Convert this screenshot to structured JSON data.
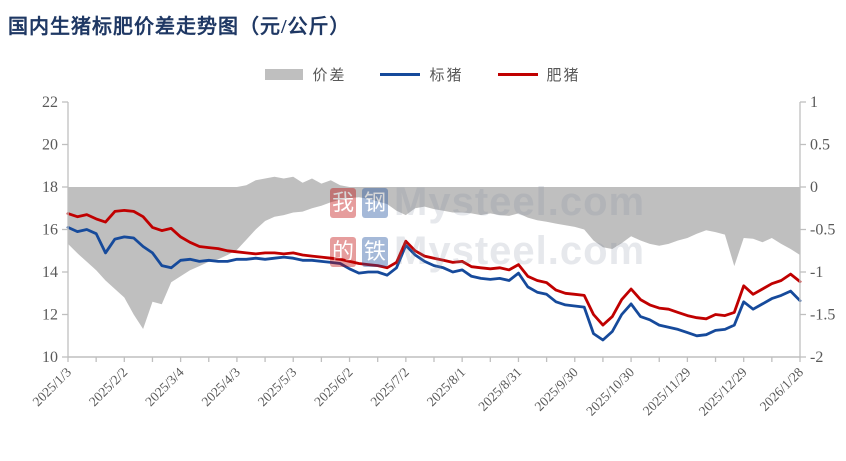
{
  "title": "国内生猪标肥价差走势图（元/公斤）",
  "colors": {
    "title": "#1F3864",
    "area": "#BFBFBF",
    "biao_line": "#164A9B",
    "fei_line": "#C00000",
    "axis_line": "#BFBFBF",
    "axis_text": "#595959",
    "watermark_red": "#C00000",
    "watermark_blue": "#164A9B"
  },
  "legend": {
    "items": [
      {
        "label": "价差",
        "type": "area",
        "color": "#BFBFBF"
      },
      {
        "label": "标猪",
        "type": "line",
        "color": "#164A9B"
      },
      {
        "label": "肥猪",
        "type": "line",
        "color": "#C00000"
      }
    ]
  },
  "watermark": {
    "text": "Mysteel.com",
    "tiles": [
      "我",
      "钢",
      "的",
      "铁"
    ]
  },
  "chart_data": {
    "type": "line+area",
    "title": "国内生猪标肥价差走势图（元/公斤）",
    "x_label_dates": [
      "2025/1/3",
      "2025/2/2",
      "2025/3/4",
      "2025/4/3",
      "2025/5/3",
      "2025/6/2",
      "2025/7/2",
      "2025/8/1",
      "2025/8/31",
      "2025/9/30",
      "2025/10/30",
      "2025/11/29",
      "2025/12/29",
      "2026/1/28"
    ],
    "x_label_every_days": 30,
    "x_minor_tick_days": 15,
    "x_total_days": 390,
    "sample_interval_days": 5,
    "left_axis": {
      "min": 10,
      "max": 22,
      "step": 2,
      "ticks": [
        "22",
        "20",
        "18",
        "16",
        "14",
        "12",
        "10"
      ]
    },
    "right_axis": {
      "min": -2,
      "max": 1,
      "step": 0.5,
      "ticks": [
        "1",
        "0.5",
        "0",
        "-0.5",
        "-1",
        "-1.5",
        "-2"
      ]
    },
    "grid": false,
    "legend_position": "top-center",
    "series": [
      {
        "name": "价差",
        "axis": "right",
        "render": "area-band",
        "color": "#BFBFBF",
        "upper": [
          0,
          0,
          0,
          0,
          0,
          0,
          0,
          0,
          0,
          0,
          0,
          0,
          0,
          0,
          0,
          0,
          0,
          0,
          0,
          0.02,
          0.08,
          0.1,
          0.12,
          0.1,
          0.12,
          0.05,
          0.1,
          0.04,
          0.08,
          0.02,
          0,
          0,
          0,
          0,
          0,
          0,
          0,
          0,
          0,
          0,
          0,
          0,
          0,
          0,
          0,
          0,
          0,
          0,
          0,
          0,
          0,
          0,
          0,
          0,
          0,
          0,
          0,
          0,
          0,
          0,
          0,
          0,
          0,
          0,
          0,
          0,
          0,
          0,
          0,
          0,
          0,
          0,
          0,
          0,
          0,
          0,
          0,
          0,
          0
        ],
        "lower": [
          -0.67,
          -0.78,
          -0.88,
          -0.98,
          -1.1,
          -1.2,
          -1.3,
          -1.5,
          -1.67,
          -1.35,
          -1.38,
          -1.12,
          -1.05,
          -0.98,
          -0.93,
          -0.88,
          -0.85,
          -0.8,
          -0.74,
          -0.62,
          -0.5,
          -0.4,
          -0.35,
          -0.33,
          -0.3,
          -0.29,
          -0.25,
          -0.22,
          -0.18,
          -0.15,
          -0.13,
          -0.12,
          -0.14,
          -0.17,
          -0.2,
          -0.28,
          -0.33,
          -0.25,
          -0.23,
          -0.26,
          -0.28,
          -0.3,
          -0.3,
          -0.31,
          -0.33,
          -0.31,
          -0.33,
          -0.34,
          -0.31,
          -0.36,
          -0.39,
          -0.41,
          -0.43,
          -0.45,
          -0.47,
          -0.5,
          -0.63,
          -0.71,
          -0.73,
          -0.66,
          -0.58,
          -0.63,
          -0.67,
          -0.69,
          -0.67,
          -0.63,
          -0.6,
          -0.55,
          -0.51,
          -0.53,
          -0.56,
          -0.93,
          -0.6,
          -0.61,
          -0.65,
          -0.6,
          -0.67,
          -0.73,
          -0.8
        ]
      },
      {
        "name": "标猪",
        "axis": "left",
        "render": "line",
        "color": "#164A9B",
        "values": [
          16.1,
          15.9,
          16.0,
          15.8,
          14.9,
          15.55,
          15.65,
          15.6,
          15.2,
          14.9,
          14.3,
          14.2,
          14.55,
          14.6,
          14.5,
          14.55,
          14.5,
          14.5,
          14.6,
          14.6,
          14.65,
          14.6,
          14.65,
          14.7,
          14.65,
          14.55,
          14.55,
          14.5,
          14.45,
          14.4,
          14.15,
          13.95,
          14.0,
          14.0,
          13.85,
          14.2,
          15.25,
          14.8,
          14.5,
          14.3,
          14.2,
          14.0,
          14.1,
          13.8,
          13.7,
          13.65,
          13.7,
          13.6,
          13.95,
          13.3,
          13.05,
          12.95,
          12.6,
          12.45,
          12.4,
          12.35,
          11.1,
          10.8,
          11.2,
          12.0,
          12.5,
          11.9,
          11.75,
          11.5,
          11.4,
          11.3,
          11.15,
          11.0,
          11.05,
          11.25,
          11.3,
          11.5,
          12.6,
          12.25,
          12.5,
          12.75,
          12.9,
          13.1,
          12.65
        ]
      },
      {
        "name": "肥猪",
        "axis": "left",
        "render": "line",
        "color": "#C00000",
        "values": [
          16.75,
          16.6,
          16.7,
          16.5,
          16.35,
          16.85,
          16.9,
          16.85,
          16.6,
          16.1,
          15.95,
          16.05,
          15.65,
          15.4,
          15.2,
          15.15,
          15.1,
          15.0,
          14.95,
          14.9,
          14.85,
          14.9,
          14.9,
          14.85,
          14.9,
          14.8,
          14.75,
          14.7,
          14.65,
          14.6,
          14.5,
          14.4,
          14.35,
          14.3,
          14.2,
          14.45,
          15.45,
          15.0,
          14.75,
          14.65,
          14.55,
          14.45,
          14.5,
          14.25,
          14.2,
          14.15,
          14.2,
          14.1,
          14.35,
          13.8,
          13.6,
          13.5,
          13.15,
          13.0,
          12.95,
          12.9,
          12.0,
          11.5,
          11.9,
          12.7,
          13.2,
          12.7,
          12.45,
          12.3,
          12.25,
          12.1,
          11.95,
          11.85,
          11.8,
          12.0,
          11.95,
          12.1,
          13.35,
          12.95,
          13.2,
          13.45,
          13.6,
          13.9,
          13.55
        ]
      }
    ]
  }
}
